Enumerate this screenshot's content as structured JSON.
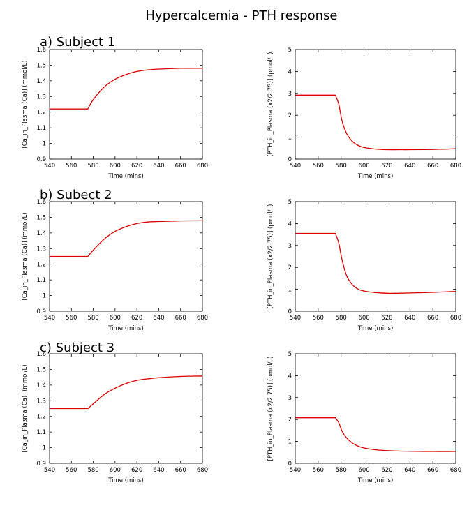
{
  "figure": {
    "title": "Hypercalcemia - PTH response"
  },
  "panels": [
    {
      "label": "a) Subject 1"
    },
    {
      "label": "b) Subect 2"
    },
    {
      "label": "c) Subject 3"
    }
  ],
  "colors": {
    "series": "#dd0000",
    "axes": "#000000",
    "background": "#ffffff"
  },
  "chart_data": [
    {
      "type": "line",
      "subject": "a) Subject 1",
      "title": "",
      "xlabel": "Time (mins)",
      "ylabel": "[Ca_in_Plasma (Ca)] (mmol/L)",
      "xlim": [
        540,
        680
      ],
      "ylim": [
        0.9,
        1.6
      ],
      "xticks": [
        540,
        560,
        580,
        600,
        620,
        640,
        660,
        680
      ],
      "yticks": [
        0.9,
        1,
        1.1,
        1.2,
        1.3,
        1.4,
        1.5,
        1.6
      ],
      "xtick_labels": [
        "540",
        "560",
        "580",
        "600",
        "620",
        "640",
        "660",
        "680"
      ],
      "ytick_labels": [
        "0.9",
        "1",
        "1.1",
        "1.2",
        "1.3",
        "1.4",
        "1.5",
        "1.6"
      ],
      "grid": false,
      "series": [
        {
          "name": "Ca",
          "x": [
            540,
            575,
            580,
            590,
            600,
            610,
            620,
            630,
            640,
            660,
            680
          ],
          "y": [
            1.22,
            1.22,
            1.28,
            1.36,
            1.41,
            1.44,
            1.46,
            1.47,
            1.475,
            1.48,
            1.48
          ]
        }
      ]
    },
    {
      "type": "line",
      "subject": "a) Subject 1",
      "title": "",
      "xlabel": "Time (mins)",
      "ylabel": "[PTH_in_Plasma (x2/2.75)] (pmol/L)",
      "xlim": [
        540,
        680
      ],
      "ylim": [
        0,
        5
      ],
      "xticks": [
        540,
        560,
        580,
        600,
        620,
        640,
        660,
        680
      ],
      "yticks": [
        0,
        1,
        2,
        3,
        4,
        5
      ],
      "xtick_labels": [
        "540",
        "560",
        "580",
        "600",
        "620",
        "640",
        "660",
        "680"
      ],
      "ytick_labels": [
        "0",
        "1",
        "2",
        "3",
        "4",
        "5"
      ],
      "grid": false,
      "series": [
        {
          "name": "PTH",
          "x": [
            540,
            575,
            578,
            581,
            585,
            590,
            595,
            600,
            610,
            620,
            630,
            640,
            660,
            680
          ],
          "y": [
            2.92,
            2.92,
            2.5,
            1.7,
            1.15,
            0.8,
            0.62,
            0.53,
            0.46,
            0.43,
            0.43,
            0.43,
            0.44,
            0.47
          ]
        }
      ]
    },
    {
      "type": "line",
      "subject": "b) Subect 2",
      "title": "",
      "xlabel": "Time (mins)",
      "ylabel": "[Ca_in_Plasma (Ca)] (mmol/L)",
      "xlim": [
        540,
        680
      ],
      "ylim": [
        0.9,
        1.6
      ],
      "xticks": [
        540,
        560,
        580,
        600,
        620,
        640,
        660,
        680
      ],
      "yticks": [
        0.9,
        1,
        1.1,
        1.2,
        1.3,
        1.4,
        1.5,
        1.6
      ],
      "xtick_labels": [
        "540",
        "560",
        "580",
        "600",
        "620",
        "640",
        "660",
        "680"
      ],
      "ytick_labels": [
        "0.9",
        "1",
        "1.1",
        "1.2",
        "1.3",
        "1.4",
        "1.5",
        "1.6"
      ],
      "grid": false,
      "series": [
        {
          "name": "Ca",
          "x": [
            540,
            575,
            580,
            590,
            600,
            610,
            620,
            630,
            640,
            660,
            680
          ],
          "y": [
            1.25,
            1.25,
            1.29,
            1.36,
            1.41,
            1.44,
            1.46,
            1.47,
            1.473,
            1.477,
            1.478
          ]
        }
      ]
    },
    {
      "type": "line",
      "subject": "b) Subect 2",
      "title": "",
      "xlabel": "Time (mins)",
      "ylabel": "[PTH_in_Plasma (x2/2.75)] (pmol/L)",
      "xlim": [
        540,
        680
      ],
      "ylim": [
        0,
        5
      ],
      "xticks": [
        540,
        560,
        580,
        600,
        620,
        640,
        660,
        680
      ],
      "yticks": [
        0,
        1,
        2,
        3,
        4,
        5
      ],
      "xtick_labels": [
        "540",
        "560",
        "580",
        "600",
        "620",
        "640",
        "660",
        "680"
      ],
      "ytick_labels": [
        "0",
        "1",
        "2",
        "3",
        "4",
        "5"
      ],
      "grid": false,
      "series": [
        {
          "name": "PTH",
          "x": [
            540,
            575,
            578,
            581,
            585,
            590,
            595,
            600,
            610,
            620,
            630,
            640,
            660,
            680
          ],
          "y": [
            3.55,
            3.55,
            3.1,
            2.3,
            1.6,
            1.2,
            1.0,
            0.92,
            0.85,
            0.82,
            0.82,
            0.83,
            0.86,
            0.9
          ]
        }
      ]
    },
    {
      "type": "line",
      "subject": "c) Subject 3",
      "title": "",
      "xlabel": "Time (mins)",
      "ylabel": "[Ca_in_Plasma (Ca)] (mmol/L)",
      "xlim": [
        540,
        680
      ],
      "ylim": [
        0.9,
        1.6
      ],
      "xticks": [
        540,
        560,
        580,
        600,
        620,
        640,
        660,
        680
      ],
      "yticks": [
        0.9,
        1,
        1.1,
        1.2,
        1.3,
        1.4,
        1.5,
        1.6
      ],
      "xtick_labels": [
        "540",
        "560",
        "580",
        "600",
        "620",
        "640",
        "660",
        "680"
      ],
      "ytick_labels": [
        "0.9",
        "1",
        "1.1",
        "1.2",
        "1.3",
        "1.4",
        "1.5",
        "1.6"
      ],
      "grid": false,
      "series": [
        {
          "name": "Ca",
          "x": [
            540,
            575,
            580,
            590,
            600,
            610,
            620,
            630,
            640,
            660,
            680
          ],
          "y": [
            1.25,
            1.25,
            1.28,
            1.34,
            1.38,
            1.41,
            1.43,
            1.44,
            1.447,
            1.455,
            1.458
          ]
        }
      ]
    },
    {
      "type": "line",
      "subject": "c) Subject 3",
      "title": "",
      "xlabel": "Time (mins)",
      "ylabel": "[PTH_in_Plasma (x2/2.75)] (pmol/L)",
      "xlim": [
        540,
        680
      ],
      "ylim": [
        0,
        5
      ],
      "xticks": [
        540,
        560,
        580,
        600,
        620,
        640,
        660,
        680
      ],
      "yticks": [
        0,
        1,
        2,
        3,
        4,
        5
      ],
      "xtick_labels": [
        "540",
        "560",
        "580",
        "600",
        "620",
        "640",
        "660",
        "680"
      ],
      "ytick_labels": [
        "0",
        "1",
        "2",
        "3",
        "4",
        "5"
      ],
      "grid": false,
      "series": [
        {
          "name": "PTH",
          "x": [
            540,
            575,
            578,
            581,
            585,
            590,
            595,
            600,
            610,
            620,
            630,
            640,
            660,
            680
          ],
          "y": [
            2.08,
            2.08,
            1.85,
            1.45,
            1.15,
            0.92,
            0.78,
            0.7,
            0.62,
            0.58,
            0.56,
            0.55,
            0.54,
            0.54
          ]
        }
      ]
    }
  ]
}
